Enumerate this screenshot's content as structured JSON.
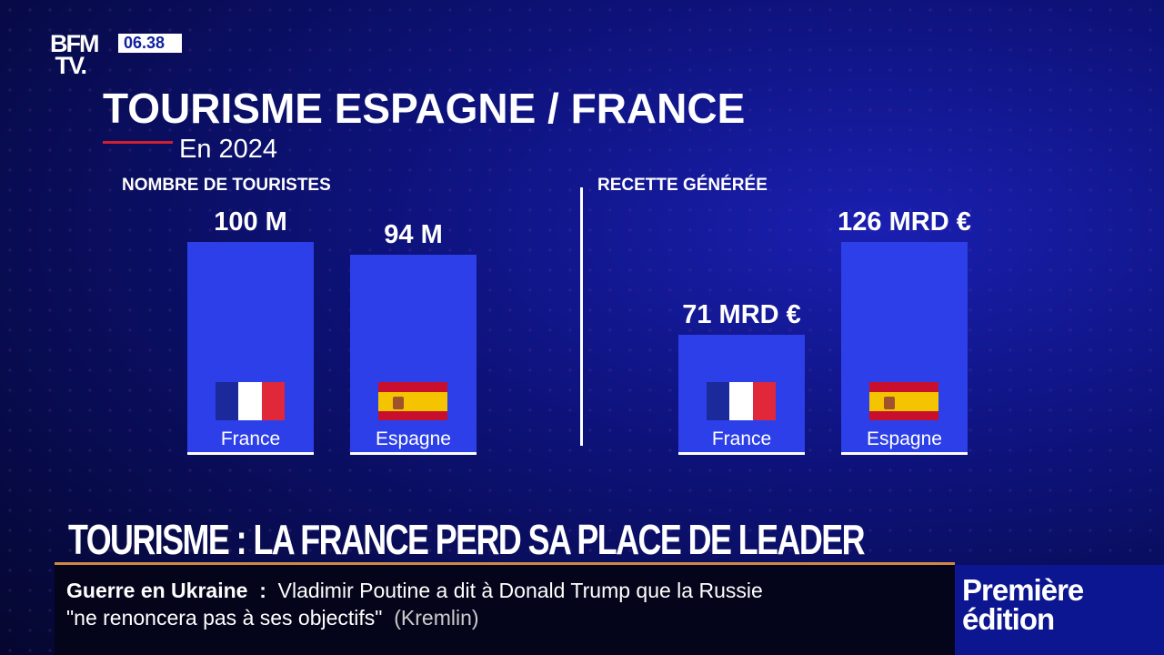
{
  "channel": {
    "logo": "BFM TV.",
    "clock": "06.38"
  },
  "header": {
    "title": "TOURISME ESPAGNE / FRANCE",
    "subtitle": "En 2024"
  },
  "chart_data": [
    {
      "type": "bar",
      "title": "NOMBRE DE TOURISTES",
      "categories": [
        "France",
        "Espagne"
      ],
      "values": [
        100,
        94
      ],
      "labels": [
        "100 M",
        "94 M"
      ],
      "unit": "millions",
      "ylim": [
        0,
        100
      ]
    },
    {
      "type": "bar",
      "title": "RECETTE GÉNÉRÉE",
      "categories": [
        "France",
        "Espagne"
      ],
      "values": [
        71,
        126
      ],
      "labels": [
        "71 MRD €",
        "126 MRD €"
      ],
      "unit": "milliards €",
      "ylim": [
        0,
        126
      ]
    }
  ],
  "colors": {
    "bar": "#2d3fe8"
  },
  "bottom": {
    "headline": "TOURISME : LA FRANCE PERD SA PLACE DE LEADER",
    "ticker_topic": "Guerre en Ukraine",
    "ticker_sep": ":",
    "ticker_line1": "Vladimir Poutine a dit à Donald Trump que la Russie",
    "ticker_line2": "\"ne renoncera pas à ses objectifs\"",
    "ticker_source": "(Kremlin)",
    "program": "Première édition"
  }
}
